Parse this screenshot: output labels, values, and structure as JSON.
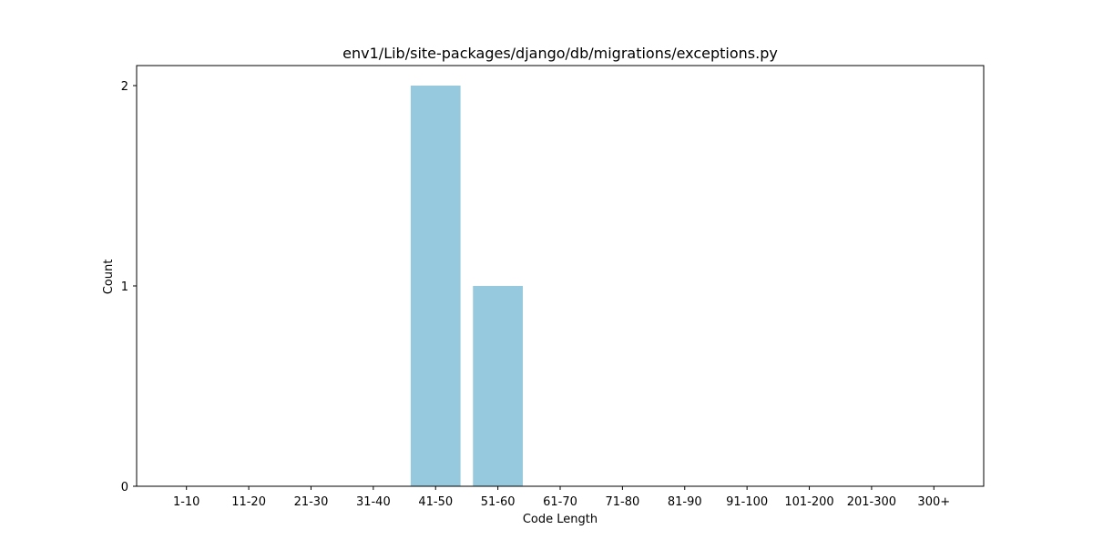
{
  "chart_data": {
    "type": "bar",
    "title": "env1/Lib/site-packages/django/db/migrations/exceptions.py",
    "xlabel": "Code Length",
    "ylabel": "Count",
    "categories": [
      "1-10",
      "11-20",
      "21-30",
      "31-40",
      "41-50",
      "51-60",
      "61-70",
      "71-80",
      "81-90",
      "91-100",
      "101-200",
      "201-300",
      "300+"
    ],
    "values": [
      0,
      0,
      0,
      0,
      2,
      1,
      0,
      0,
      0,
      0,
      0,
      0,
      0
    ],
    "ylim": [
      0,
      2.1
    ],
    "yticks": [
      0,
      1,
      2
    ],
    "grid": false,
    "legend": "none",
    "bar_color": "#96c9dd"
  }
}
